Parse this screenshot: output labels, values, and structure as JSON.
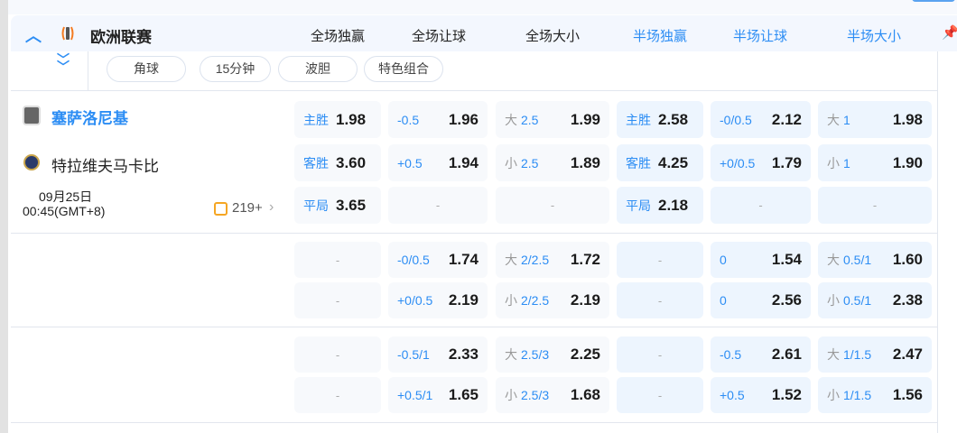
{
  "league": {
    "name": "欧洲联赛",
    "collapse_icon": "chevron-up-icon",
    "expand_icon": "double-chevron-down-icon"
  },
  "columns": [
    "全场独赢",
    "全场让球",
    "全场大小",
    "半场独赢",
    "半场让球",
    "半场大小"
  ],
  "tabs": [
    "角球",
    "15分钟",
    "波胆",
    "特色组合"
  ],
  "match": {
    "home": "塞萨洛尼基",
    "away": "特拉维夫马卡比",
    "date": "09月25日",
    "time": "00:45(GMT+8)",
    "more_count": "219+"
  },
  "colors": {
    "accent": "#2c8df4",
    "header_bg": "#f3f7fe"
  },
  "rows": [
    [
      [
        {
          "l": "主胜",
          "v": "1.98"
        },
        {
          "l": "-0.5",
          "v": "1.96"
        },
        {
          "g": "大",
          "l": "2.5",
          "v": "1.99"
        },
        {
          "l": "主胜",
          "v": "2.58"
        },
        {
          "l": "-0/0.5",
          "v": "2.12"
        },
        {
          "g": "大",
          "l": "1",
          "v": "1.98"
        }
      ],
      [
        {
          "l": "客胜",
          "v": "3.60"
        },
        {
          "l": "+0.5",
          "v": "1.94"
        },
        {
          "g": "小",
          "l": "2.5",
          "v": "1.89"
        },
        {
          "l": "客胜",
          "v": "4.25"
        },
        {
          "l": "+0/0.5",
          "v": "1.79"
        },
        {
          "g": "小",
          "l": "1",
          "v": "1.90"
        }
      ],
      [
        {
          "l": "平局",
          "v": "3.65"
        },
        {
          "d": "-"
        },
        {
          "d": "-"
        },
        {
          "l": "平局",
          "v": "2.18"
        },
        {
          "d": "-"
        },
        {
          "d": "-"
        }
      ]
    ],
    [
      [
        {
          "d": "-"
        },
        {
          "l": "-0/0.5",
          "v": "1.74"
        },
        {
          "g": "大",
          "l": "2/2.5",
          "v": "1.72"
        },
        {
          "d": "-"
        },
        {
          "l": "0",
          "v": "1.54"
        },
        {
          "g": "大",
          "l": "0.5/1",
          "v": "1.60"
        }
      ],
      [
        {
          "d": "-"
        },
        {
          "l": "+0/0.5",
          "v": "2.19"
        },
        {
          "g": "小",
          "l": "2/2.5",
          "v": "2.19"
        },
        {
          "d": "-"
        },
        {
          "l": "0",
          "v": "2.56"
        },
        {
          "g": "小",
          "l": "0.5/1",
          "v": "2.38"
        }
      ]
    ],
    [
      [
        {
          "d": "-"
        },
        {
          "l": "-0.5/1",
          "v": "2.33"
        },
        {
          "g": "大",
          "l": "2.5/3",
          "v": "2.25"
        },
        {
          "d": "-"
        },
        {
          "l": "-0.5",
          "v": "2.61"
        },
        {
          "g": "大",
          "l": "1/1.5",
          "v": "2.47"
        }
      ],
      [
        {
          "d": "-"
        },
        {
          "l": "+0.5/1",
          "v": "1.65"
        },
        {
          "g": "小",
          "l": "2.5/3",
          "v": "1.68"
        },
        {
          "d": "-"
        },
        {
          "l": "+0.5",
          "v": "1.52"
        },
        {
          "g": "小",
          "l": "1/1.5",
          "v": "1.56"
        }
      ]
    ]
  ]
}
